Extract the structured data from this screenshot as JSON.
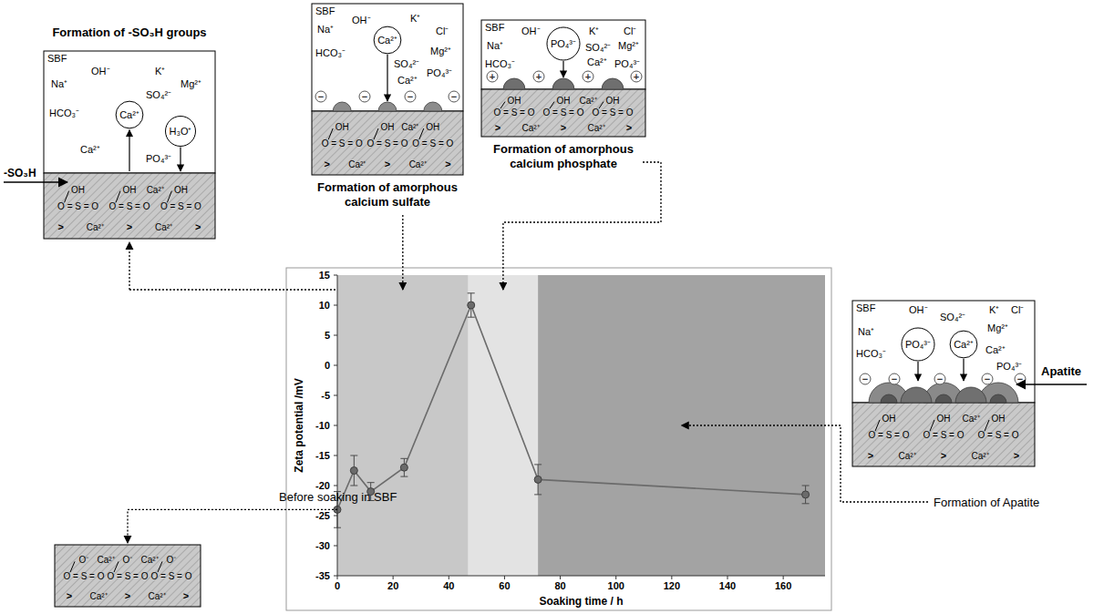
{
  "chart_data": {
    "type": "line",
    "x_label": "Soaking time / h",
    "y_label": "Zeta potential /mV",
    "x": [
      0,
      6,
      12,
      24,
      48,
      72,
      168
    ],
    "values": [
      -24,
      -17.5,
      -21,
      -17,
      10,
      -19,
      -21.5
    ],
    "errors": [
      3,
      2.5,
      1.5,
      1.5,
      2,
      2.5,
      1.5
    ],
    "color": "#6b6b6b",
    "marker": "circle",
    "xlim": [
      0,
      175
    ],
    "xticks": [
      0,
      20,
      40,
      60,
      80,
      100,
      120,
      140,
      160
    ],
    "ylim": [
      -35,
      15
    ],
    "yticks": [
      -35,
      -30,
      -25,
      -20,
      -15,
      -10,
      -5,
      0,
      5,
      10,
      15
    ],
    "phases": [
      {
        "from": 0,
        "to": 47
      },
      {
        "from": 47,
        "to": 72
      },
      {
        "from": 72,
        "to": 175
      }
    ],
    "grid": false
  },
  "surface": {
    "acid": "OH",
    "ionized": "O⁻",
    "group": "O = S = O",
    "cation": "Ca²⁺",
    "link": ">"
  },
  "panels": [
    {
      "title": "Formation of -SO₃H groups",
      "medium": "SBF",
      "ions": [
        "Na⁺",
        "OH⁻",
        "K⁺",
        "HCO₃⁻",
        "SO₄²⁻",
        "Mg²⁺",
        "Ca²⁺",
        "PO₄³⁻"
      ],
      "moving_ions": [
        "Ca²⁺",
        "H₃O⁺"
      ],
      "label": "-SO₃H"
    },
    {
      "title": "Formation of amorphous calcium sulfate",
      "medium": "SBF",
      "ions": [
        "Na⁺",
        "OH⁻",
        "K⁺",
        "Cl⁻",
        "HCO₃⁻",
        "SO₄²⁻",
        "Mg²⁺",
        "Ca²⁺",
        "PO₄³⁻"
      ],
      "moving_ions": [
        "Ca²⁺"
      ],
      "surface_charge": "−"
    },
    {
      "title": "Formation of amorphous calcium phosphate",
      "medium": "SBF",
      "ions": [
        "Na⁺",
        "OH⁻",
        "K⁺",
        "Cl⁻",
        "HCO₃⁻",
        "SO₄²⁻",
        "Mg²⁺",
        "Ca²⁺",
        "PO₄³⁻"
      ],
      "moving_ions": [
        "PO₄³⁻"
      ],
      "surface_charge": "+"
    },
    {
      "title": "Formation of Apatite",
      "medium": "SBF",
      "ions": [
        "Na⁺",
        "OH⁻",
        "K⁺",
        "Cl⁻",
        "HCO₃⁻",
        "SO₄²⁻",
        "Mg²⁺",
        "Ca²⁺",
        "PO₄³⁻"
      ],
      "moving_ions": [
        "PO₄³⁻",
        "Ca²⁺"
      ],
      "surface_charge": "−",
      "label": "Apatite"
    },
    {
      "title": "Before soaking in SBF"
    }
  ]
}
